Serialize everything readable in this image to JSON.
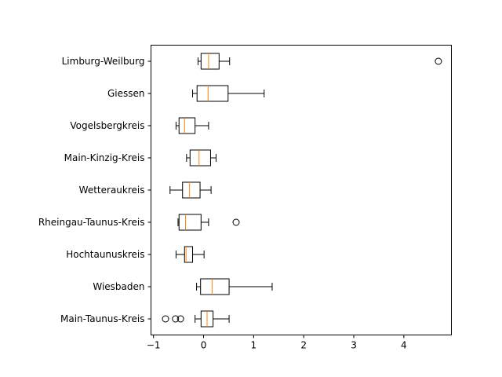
{
  "chart_data": {
    "type": "boxplot",
    "orientation": "horizontal",
    "title": "",
    "xlabel": "",
    "ylabel": "",
    "xlim": [
      -1.05,
      4.95
    ],
    "xticks": [
      -1,
      0,
      1,
      2,
      3,
      4
    ],
    "xtick_labels": [
      "−1",
      "0",
      "1",
      "2",
      "3",
      "4"
    ],
    "grid": false,
    "colors": {
      "box": "#000000",
      "median": "#ff7f0e",
      "flier": "#000000"
    },
    "categories": [
      "Main-Taunus-Kreis",
      "Wiesbaden",
      "Hochtaunuskreis",
      "Rheingau-Taunus-Kreis",
      "Wetteraukreis",
      "Main-Kinzig-Kreis",
      "Vogelsbergkreis",
      "Giessen",
      "Limburg-Weilburg"
    ],
    "boxes": [
      {
        "whislo": -0.17,
        "q1": -0.05,
        "med": 0.07,
        "q3": 0.19,
        "whishi": 0.51,
        "fliers": [
          -0.76,
          -0.56,
          -0.46
        ]
      },
      {
        "whislo": -0.14,
        "q1": -0.06,
        "med": 0.17,
        "q3": 0.51,
        "whishi": 1.37,
        "fliers": []
      },
      {
        "whislo": -0.55,
        "q1": -0.38,
        "med": -0.35,
        "q3": -0.22,
        "whishi": 0.01,
        "fliers": []
      },
      {
        "whislo": -0.51,
        "q1": -0.49,
        "med": -0.36,
        "q3": -0.05,
        "whishi": 0.1,
        "fliers": [
          0.65
        ]
      },
      {
        "whislo": -0.67,
        "q1": -0.42,
        "med": -0.28,
        "q3": -0.07,
        "whishi": 0.15,
        "fliers": []
      },
      {
        "whislo": -0.34,
        "q1": -0.27,
        "med": -0.09,
        "q3": 0.14,
        "whishi": 0.25,
        "fliers": []
      },
      {
        "whislo": -0.55,
        "q1": -0.49,
        "med": -0.38,
        "q3": -0.17,
        "whishi": 0.1,
        "fliers": []
      },
      {
        "whislo": -0.22,
        "q1": -0.13,
        "med": 0.09,
        "q3": 0.49,
        "whishi": 1.21,
        "fliers": []
      },
      {
        "whislo": -0.11,
        "q1": -0.05,
        "med": 0.1,
        "q3": 0.31,
        "whishi": 0.52,
        "fliers": [
          4.69
        ]
      }
    ]
  }
}
